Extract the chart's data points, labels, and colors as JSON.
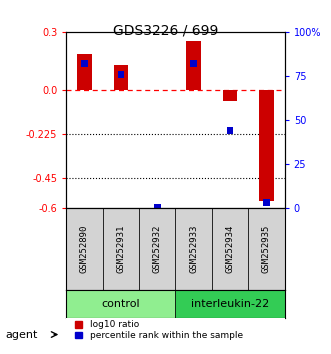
{
  "title": "GDS3226 / 699",
  "samples": [
    "GSM252890",
    "GSM252931",
    "GSM252932",
    "GSM252933",
    "GSM252934",
    "GSM252935"
  ],
  "log10_ratio": [
    0.185,
    0.13,
    0.0,
    0.255,
    -0.055,
    -0.565
  ],
  "percentile_rank": [
    82,
    76,
    0,
    82,
    44,
    3
  ],
  "groups": [
    {
      "label": "control",
      "indices": [
        0,
        1,
        2
      ],
      "color": "#90EE90"
    },
    {
      "label": "interleukin-22",
      "indices": [
        3,
        4,
        5
      ],
      "color": "#33CC55"
    }
  ],
  "ylim_left": [
    -0.6,
    0.3
  ],
  "ylim_right": [
    0,
    100
  ],
  "yticks_left": [
    0.3,
    0.0,
    -0.225,
    -0.45,
    -0.6
  ],
  "yticks_right": [
    100,
    75,
    50,
    25,
    0
  ],
  "hlines_dotted": [
    -0.225,
    -0.45
  ],
  "hline_dash": 0.0,
  "bar_color_red": "#CC0000",
  "bar_color_blue": "#0000CC",
  "bar_width": 0.4,
  "background_color": "#ffffff",
  "plot_bg": "#ffffff",
  "legend_red_label": "log10 ratio",
  "legend_blue_label": "percentile rank within the sample",
  "agent_label": "agent",
  "group_label_fontsize": 8,
  "sample_label_fontsize": 6.5
}
